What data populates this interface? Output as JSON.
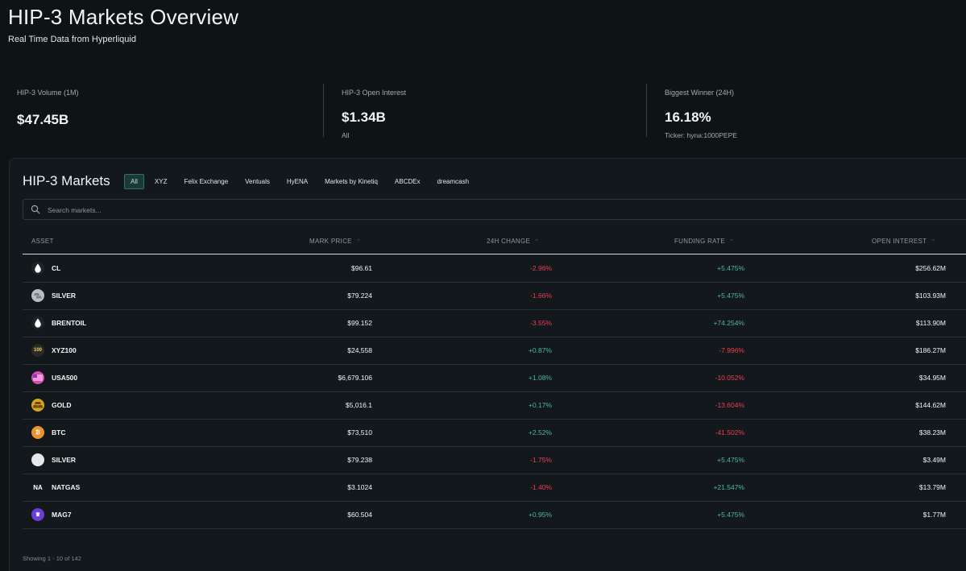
{
  "header": {
    "title": "HIP-3 Markets Overview",
    "subtitle": "Real Time Data from Hyperliquid"
  },
  "stats": [
    {
      "label": "HIP-3 Volume (1M)",
      "value": "$47.45B",
      "note": ""
    },
    {
      "label": "HIP-3 Open Interest",
      "value": "$1.34B",
      "note": "All"
    },
    {
      "label": "Biggest Winner (24H)",
      "value": "16.18%",
      "note": "Ticker: hyna:1000PEPE"
    }
  ],
  "markets": {
    "title": "HIP-3 Markets",
    "filters": [
      "All",
      "XYZ",
      "Felix Exchange",
      "Ventuals",
      "HyENA",
      "Markets by Kinetiq",
      "ABCDEx",
      "dreamcash"
    ],
    "active_filter": "All",
    "search_placeholder": "Search markets...",
    "columns": {
      "asset": "ASSET",
      "mark_price": "MARK PRICE",
      "change": "24H CHANGE",
      "funding": "FUNDING RATE",
      "open_interest": "OPEN INTEREST"
    },
    "rows": [
      {
        "icon": "oil-drop-icon",
        "icon_text": "",
        "icon_bg": "#1f2427",
        "asset": "CL",
        "price": "$96.61",
        "change": "-2.96%",
        "change_sign": "neg",
        "funding": "+5.475%",
        "funding_sign": "pos",
        "oi": "$256.62M"
      },
      {
        "icon": "silver-coin-icon",
        "icon_text": "",
        "icon_bg": "#b9bcc4",
        "asset": "SILVER",
        "price": "$79.224",
        "change": "-1.66%",
        "change_sign": "neg",
        "funding": "+5.475%",
        "funding_sign": "pos",
        "oi": "$103.93M"
      },
      {
        "icon": "oil-drop-icon",
        "icon_text": "",
        "icon_bg": "#1f2427",
        "asset": "BRENTOIL",
        "price": "$99.152",
        "change": "-3.55%",
        "change_sign": "neg",
        "funding": "+74.254%",
        "funding_sign": "pos",
        "oi": "$113.90M"
      },
      {
        "icon": "xyz100-icon",
        "icon_text": "100",
        "icon_bg": "#2c2a22",
        "asset": "XYZ100",
        "price": "$24,558",
        "change": "+0.87%",
        "change_sign": "pos",
        "funding": "-7.996%",
        "funding_sign": "neg",
        "oi": "$186.27M"
      },
      {
        "icon": "usa500-icon",
        "icon_text": "",
        "icon_bg": "#d04fb0",
        "asset": "USA500",
        "price": "$6,679.106",
        "change": "+1.08%",
        "change_sign": "pos",
        "funding": "-10.052%",
        "funding_sign": "neg",
        "oi": "$34.95M"
      },
      {
        "icon": "gold-bars-icon",
        "icon_text": "",
        "icon_bg": "#d9a317",
        "asset": "GOLD",
        "price": "$5,016.1",
        "change": "+0.17%",
        "change_sign": "pos",
        "funding": "-13.604%",
        "funding_sign": "neg",
        "oi": "$144.62M"
      },
      {
        "icon": "bitcoin-icon",
        "icon_text": "₿",
        "icon_bg": "#f0922a",
        "asset": "BTC",
        "price": "$73,510",
        "change": "+2.52%",
        "change_sign": "pos",
        "funding": "-41.502%",
        "funding_sign": "neg",
        "oi": "$38.23M"
      },
      {
        "icon": "silver-coin-icon",
        "icon_text": "",
        "icon_bg": "#e6e7e9",
        "asset": "SILVER",
        "price": "$79.238",
        "change": "-1.75%",
        "change_sign": "neg",
        "funding": "+5.475%",
        "funding_sign": "pos",
        "oi": "$3.49M"
      },
      {
        "icon": "natgas-icon",
        "icon_text": "NA",
        "icon_bg": "#12181b",
        "asset": "NATGAS",
        "price": "$3.1024",
        "change": "-1.40%",
        "change_sign": "neg",
        "funding": "+21.547%",
        "funding_sign": "pos",
        "oi": "$13.79M"
      },
      {
        "icon": "mag7-crown-icon",
        "icon_text": "♛",
        "icon_bg": "#6a3fd6",
        "asset": "MAG7",
        "price": "$60.504",
        "change": "+0.95%",
        "change_sign": "pos",
        "funding": "+5.475%",
        "funding_sign": "pos",
        "oi": "$1.77M"
      }
    ],
    "footer": "Showing 1 - 10 of 142"
  },
  "colors": {
    "positive": "#4fb89a",
    "negative": "#ec3e52",
    "accent": "#2f7367"
  }
}
